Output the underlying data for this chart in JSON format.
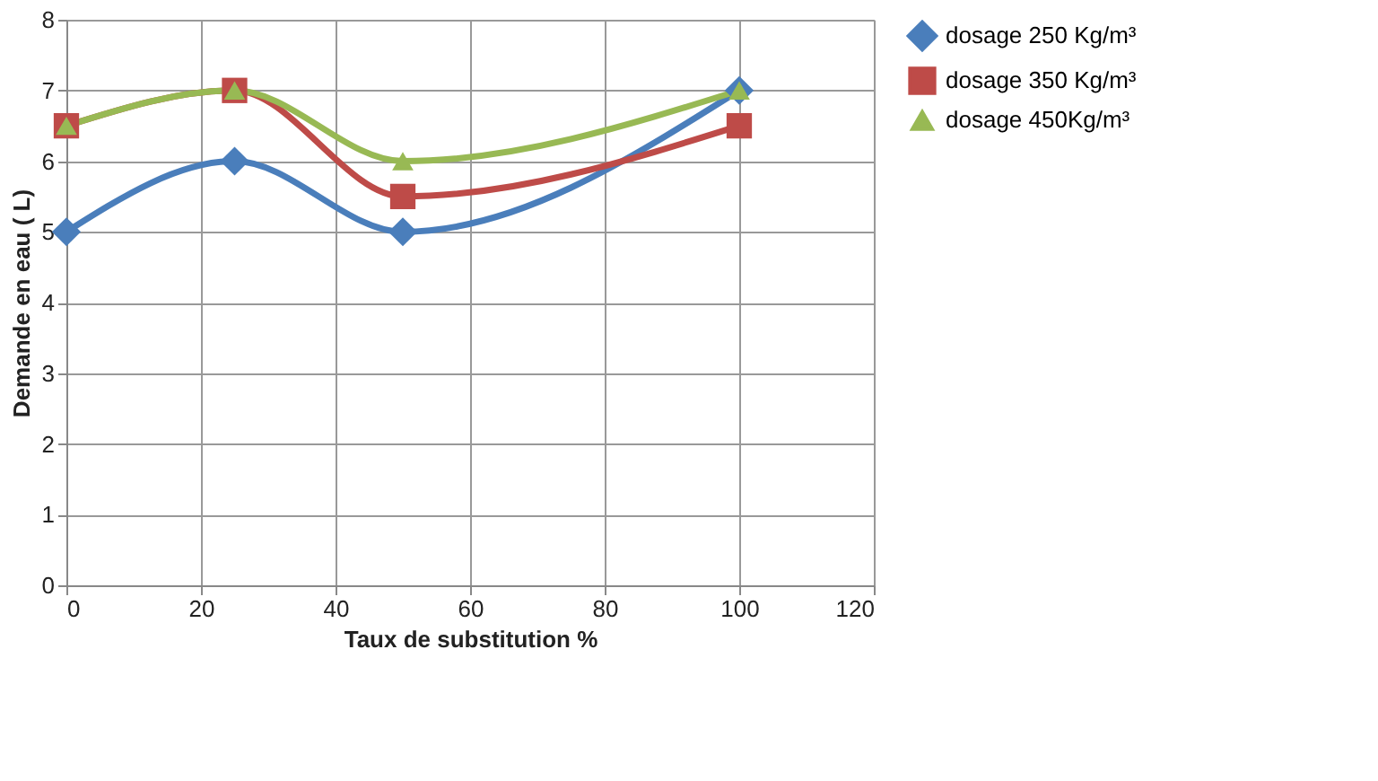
{
  "chart_data": {
    "type": "line",
    "xlabel": "Taux de substitution %",
    "ylabel": "Demande en eau ( L)",
    "x": [
      0,
      25,
      50,
      100
    ],
    "series": [
      {
        "name": "dosage 250 Kg/m³",
        "color": "#4a7ebb",
        "marker": "diamond",
        "values": [
          5,
          6,
          5,
          7
        ]
      },
      {
        "name": "dosage 350 Kg/m³",
        "color": "#be4b48",
        "marker": "square",
        "values": [
          6.5,
          7,
          5.5,
          6.5
        ]
      },
      {
        "name": "dosage 450Kg/m³",
        "color": "#98b954",
        "marker": "triangle",
        "values": [
          6.5,
          7,
          6,
          7
        ]
      }
    ],
    "xlim": [
      0,
      120
    ],
    "xticks": [
      0,
      20,
      40,
      60,
      80,
      100,
      120
    ],
    "ylim": [
      0,
      8
    ],
    "yticks": [
      0,
      1,
      2,
      3,
      4,
      5,
      6,
      7,
      8
    ],
    "grid": true,
    "legend": "right",
    "line_style": "solid"
  }
}
